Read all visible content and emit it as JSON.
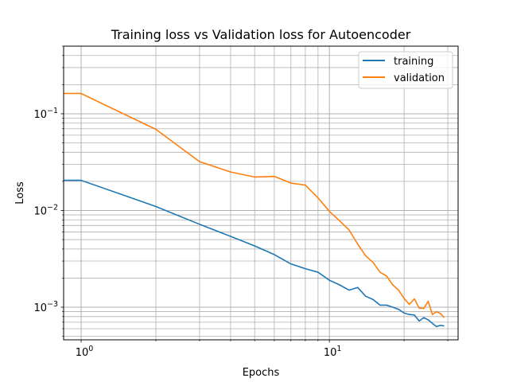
{
  "chart_data": {
    "type": "line",
    "title": "Training loss vs Validation loss for Autoencoder",
    "xlabel": "Epochs",
    "ylabel": "Loss",
    "xscale": "log",
    "yscale": "log",
    "xlim": [
      0.85,
      33
    ],
    "ylim": [
      0.00046,
      0.5
    ],
    "grid": "both-major-minor",
    "legend_position": "top-right",
    "x_ticks": [
      {
        "value": 1,
        "base": "10",
        "exp": "0"
      },
      {
        "value": 10,
        "base": "10",
        "exp": "1"
      }
    ],
    "y_ticks": [
      {
        "value": 0.001,
        "base": "10",
        "exp": "−3"
      },
      {
        "value": 0.01,
        "base": "10",
        "exp": "−2"
      },
      {
        "value": 0.1,
        "base": "10",
        "exp": "−1"
      }
    ],
    "x": [
      0,
      1,
      2,
      3,
      4,
      5,
      6,
      7,
      8,
      9,
      10,
      11,
      12,
      13,
      14,
      15,
      16,
      17,
      18,
      19,
      20,
      21,
      22,
      23,
      24,
      25,
      26,
      27,
      28,
      29
    ],
    "series": [
      {
        "name": "training",
        "color": "#1f77b4",
        "values": [
          0.0205,
          0.0205,
          0.011,
          0.0072,
          0.0054,
          0.0043,
          0.0035,
          0.0028,
          0.0025,
          0.0023,
          0.0019,
          0.0017,
          0.0015,
          0.0016,
          0.0013,
          0.0012,
          0.00105,
          0.00105,
          0.001,
          0.00095,
          0.00087,
          0.00084,
          0.00083,
          0.00072,
          0.00078,
          0.00074,
          0.00068,
          0.00063,
          0.00065,
          0.00064
        ]
      },
      {
        "name": "validation",
        "color": "#ff7f0e",
        "values": [
          0.162,
          0.162,
          0.069,
          0.032,
          0.025,
          0.0222,
          0.0225,
          0.0192,
          0.0183,
          0.0135,
          0.0098,
          0.0078,
          0.0063,
          0.0045,
          0.0034,
          0.0029,
          0.0023,
          0.0021,
          0.0017,
          0.0015,
          0.00123,
          0.00107,
          0.00122,
          0.00098,
          0.00097,
          0.00115,
          0.00084,
          0.0009,
          0.00086,
          0.00078
        ]
      }
    ]
  }
}
